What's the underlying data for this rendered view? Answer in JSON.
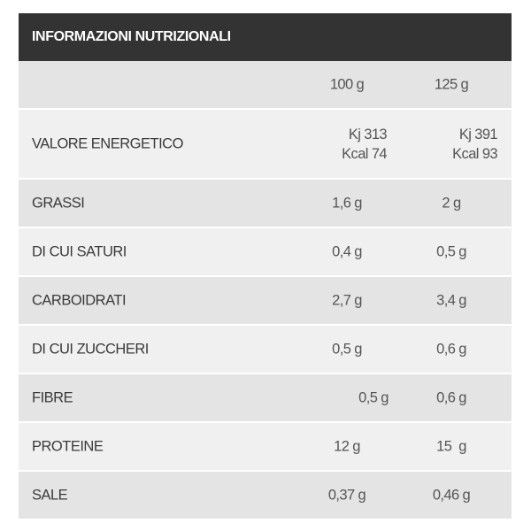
{
  "title": "INFORMAZIONI NUTRIZIONALI",
  "columns": [
    "100 g",
    "125 g"
  ],
  "energy": {
    "label": "VALORE ENERGETICO",
    "col1_kj": "Kj 313",
    "col1_kcal": "Kcal 74",
    "col2_kj": "Kj 391",
    "col2_kcal": "Kcal 93"
  },
  "rows": [
    {
      "label": "GRASSI",
      "v1": "1,6 g",
      "v2": "2 g"
    },
    {
      "label": "DI CUI SATURI",
      "v1": "0,4 g",
      "v2": "0,5 g"
    },
    {
      "label": "CARBOIDRATI",
      "v1": "2,7 g",
      "v2": "3,4 g"
    },
    {
      "label": "DI CUI ZUCCHERI",
      "v1": "0,5 g",
      "v2": "0,6 g"
    },
    {
      "label": "FIBRE",
      "v1": "0,5 g",
      "v2": "0,6 g"
    },
    {
      "label": "PROTEINE",
      "v1": "12 g",
      "v2": "15  g"
    },
    {
      "label": "SALE",
      "v1": "0,37 g",
      "v2": "0,46 g"
    }
  ],
  "colors": {
    "header_bg": "#333333",
    "row_dark": "#e4e4e4",
    "row_light": "#f0f0f0"
  }
}
